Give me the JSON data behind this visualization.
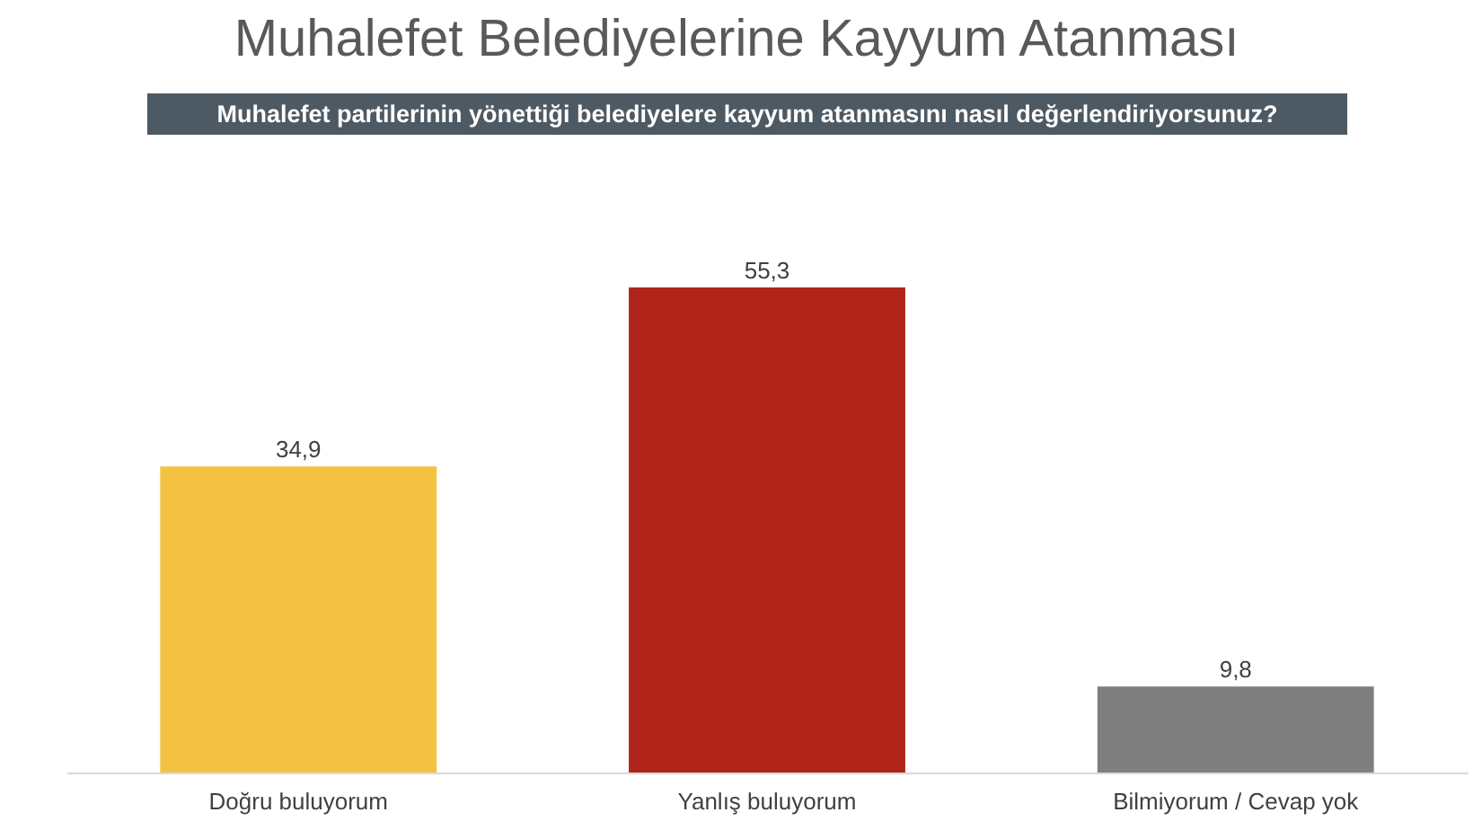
{
  "chart_data": {
    "type": "bar",
    "title": "Muhalefet Belediyelerine Kayyum Atanması",
    "subtitle": "Muhalefet partilerinin yönettiği belediyelere kayyum atanmasını nasıl değerlendiriyorsunuz?",
    "categories": [
      "Doğru buluyorum",
      "Yanlış buluyorum",
      "Bilmiyorum / Cevap yok"
    ],
    "values": [
      34.9,
      55.3,
      9.8
    ],
    "colors": [
      "#f4c243",
      "#b0241a",
      "#7f7f7f"
    ],
    "value_labels": [
      "34,9",
      "55,3",
      "9,8"
    ]
  }
}
